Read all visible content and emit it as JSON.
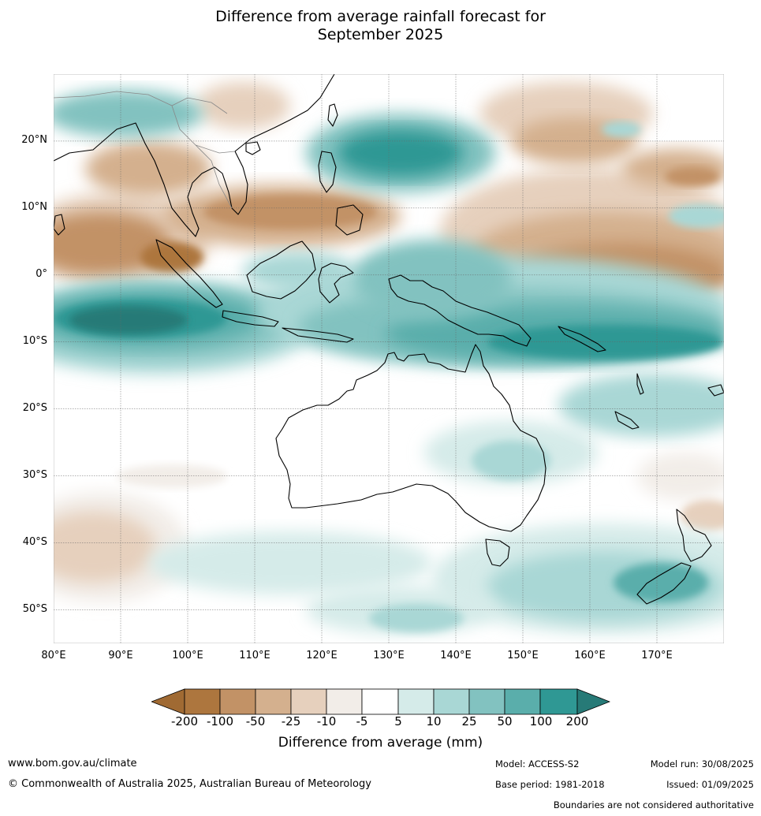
{
  "title_line1": "Difference from average rainfall forecast for",
  "title_line2": "September 2025",
  "map": {
    "region": "Australia and surrounds",
    "lon_range": [
      80,
      180
    ],
    "lat_range": [
      -55,
      30
    ],
    "lat_ticks": [
      "20°N",
      "10°N",
      "0°",
      "10°S",
      "20°S",
      "30°S",
      "40°S",
      "50°S"
    ],
    "lon_ticks": [
      "80°E",
      "90°E",
      "100°E",
      "110°E",
      "120°E",
      "130°E",
      "140°E",
      "150°E",
      "160°E",
      "170°E"
    ],
    "colors": {
      "dry_200": "#a06a33",
      "dry_100": "#ad763e",
      "dry_50": "#c29266",
      "dry_25": "#d4b08e",
      "dry_10": "#e6d0bd",
      "dry_5": "#f2ede8",
      "neutral": "#ffffff",
      "wet_5": "#d5ebe9",
      "wet_10": "#a9d7d5",
      "wet_25": "#82c2c0",
      "wet_50": "#5aaeab",
      "wet_100": "#2f9894",
      "wet_200": "#277a77"
    }
  },
  "legend": {
    "title": "Difference from average (mm)",
    "ticks": [
      "-200",
      "-100",
      "-50",
      "-25",
      "-10",
      "-5",
      "5",
      "10",
      "25",
      "50",
      "100",
      "200"
    ]
  },
  "footer": {
    "website": "www.bom.gov.au/climate",
    "copyright": "© Commonwealth of Australia 2025, Australian Bureau of Meteorology",
    "model": "Model: ACCESS-S2",
    "base_period": "Base period: 1981-2018",
    "model_run": "Model run: 30/08/2025",
    "issued": "Issued: 01/09/2025",
    "disclaimer": "Boundaries are not considered authoritative"
  }
}
